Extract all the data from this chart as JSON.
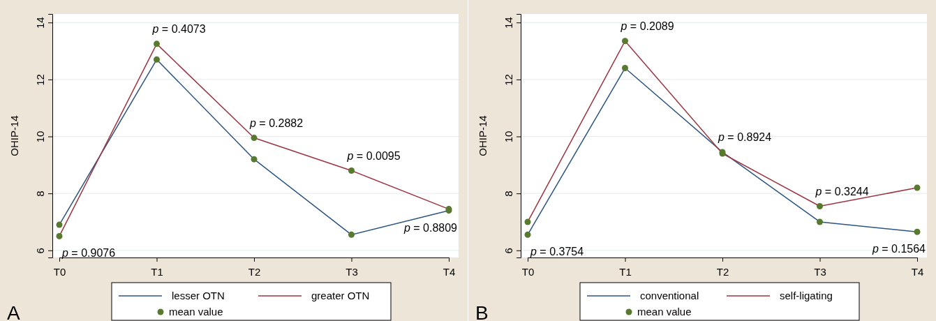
{
  "chart_data": [
    {
      "type": "line",
      "ylabel": "OHIP-14",
      "categories": [
        "T0",
        "T1",
        "T2",
        "T3",
        "T4"
      ],
      "ylim": [
        5.75,
        14.3
      ],
      "yticks": [
        6,
        8,
        10,
        12,
        14
      ],
      "grid": "y",
      "legend": "bottom",
      "series": [
        {
          "name": "lesser OTN",
          "color": "#2b5482",
          "values": [
            6.9,
            12.7,
            9.2,
            6.55,
            7.4
          ]
        },
        {
          "name": "greater OTN",
          "color": "#9e3441",
          "values": [
            6.5,
            13.25,
            9.95,
            8.8,
            7.45
          ]
        },
        {
          "name": "mean value",
          "type": "scatter",
          "color": "#587a2e",
          "x": [
            "T0",
            "T1",
            "T2",
            "T3",
            "T4",
            "T0",
            "T1",
            "T2",
            "T3",
            "T4"
          ],
          "values": [
            6.9,
            12.7,
            9.2,
            6.55,
            7.4,
            6.5,
            13.25,
            9.95,
            8.8,
            7.45
          ]
        }
      ],
      "annotations": [
        "p = 0.9076",
        "p = 0.4073",
        "p = 0.2882",
        "p = 0.0095",
        "p = 0.8809",
        "A"
      ]
    },
    {
      "type": "line",
      "ylabel": "OHIP-14",
      "categories": [
        "T0",
        "T1",
        "T2",
        "T3",
        "T4"
      ],
      "ylim": [
        5.75,
        14.3
      ],
      "yticks": [
        6,
        8,
        10,
        12,
        14
      ],
      "grid": "y",
      "legend": "bottom",
      "series": [
        {
          "name": "conventional",
          "color": "#2b5482",
          "values": [
            6.55,
            12.4,
            9.45,
            7.0,
            6.65
          ]
        },
        {
          "name": "self-ligating",
          "color": "#9e3441",
          "values": [
            7.0,
            13.35,
            9.4,
            7.55,
            8.2
          ]
        },
        {
          "name": "mean value",
          "type": "scatter",
          "color": "#587a2e",
          "x": [
            "T0",
            "T1",
            "T2",
            "T3",
            "T4",
            "T0",
            "T1",
            "T2",
            "T3",
            "T4"
          ],
          "values": [
            6.55,
            12.4,
            9.45,
            7.0,
            6.65,
            7.0,
            13.35,
            9.4,
            7.55,
            8.2
          ]
        }
      ],
      "annotations": [
        "p = 0.3754",
        "p = 0.2089",
        "p = 0.8924",
        "p = 0.3244",
        "p = 0.1564",
        "B"
      ]
    }
  ]
}
